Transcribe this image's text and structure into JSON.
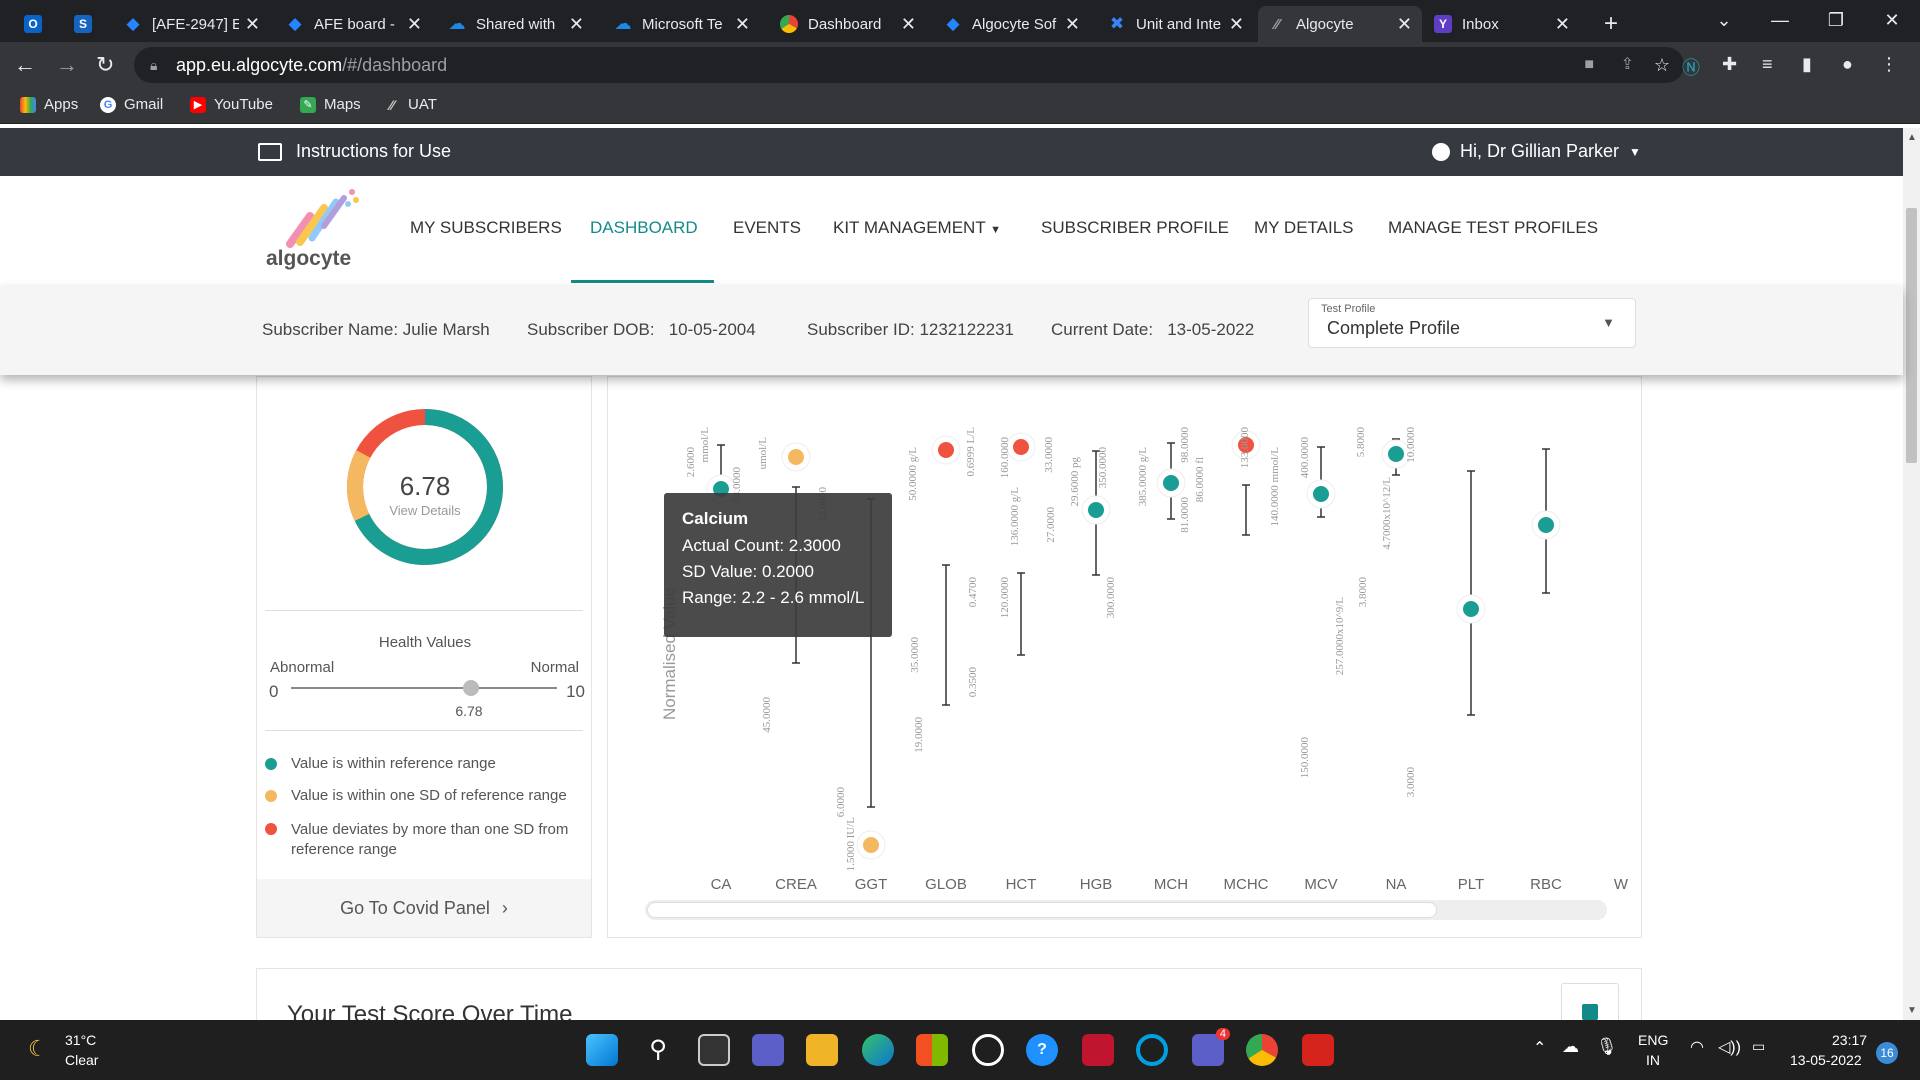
{
  "browser": {
    "tabs": [
      {
        "title": "",
        "icon": "outlook-icon",
        "color": "#0a64c8"
      },
      {
        "title": "",
        "icon": "sharepoint-icon",
        "color": "#1565c0"
      },
      {
        "title": "[AFE-2947] E",
        "icon": "jira-icon",
        "color": "#2684ff"
      },
      {
        "title": "AFE board -",
        "icon": "jira-icon",
        "color": "#2684ff"
      },
      {
        "title": "Shared with",
        "icon": "onedrive-icon",
        "color": "#1e88e5"
      },
      {
        "title": "Microsoft Te",
        "icon": "onedrive-icon",
        "color": "#1e88e5"
      },
      {
        "title": "Dashboard",
        "icon": "chrome-icon",
        "color": "#e8eaed"
      },
      {
        "title": "Algocyte Sof",
        "icon": "jira-icon",
        "color": "#2684ff"
      },
      {
        "title": "Unit and Inte",
        "icon": "tool-icon",
        "color": "#3b82f6"
      },
      {
        "title": "Algocyte",
        "icon": "algocyte-icon",
        "color": "#9aa0a6"
      },
      {
        "title": "Inbox",
        "icon": "yahoo-mail-icon",
        "color": "#5f3dc4"
      }
    ],
    "url_host": "app.eu.algocyte.com",
    "url_path": "/#/dashboard",
    "bookmarks": [
      "Apps",
      "Gmail",
      "YouTube",
      "Maps",
      "UAT"
    ]
  },
  "topbar": {
    "instructions": "Instructions for Use",
    "greeting": "Hi, Dr Gillian Parker"
  },
  "nav": {
    "logo_text": "algocyte",
    "items": [
      "MY SUBSCRIBERS",
      "DASHBOARD",
      "EVENTS",
      "KIT MANAGEMENT",
      "SUBSCRIBER PROFILE",
      "MY DETAILS",
      "MANAGE TEST PROFILES"
    ],
    "active": "DASHBOARD",
    "accent": "#138a8a"
  },
  "subscriber": {
    "name_label": "Subscriber Name:",
    "name": "Julie Marsh",
    "dob_label": "Subscriber DOB:",
    "dob": "10-05-2004",
    "id_label": "Subscriber ID:",
    "id": "1232122231",
    "date_label": "Current Date:",
    "date": "13-05-2022",
    "profile_label": "Test Profile",
    "profile_value": "Complete Profile"
  },
  "score": {
    "value": "6.78",
    "link": "View Details",
    "health_title": "Health Values",
    "abnormal": "Abnormal",
    "normal": "Normal",
    "min": "0",
    "max": "10",
    "slider_value": 6.78,
    "slider_label": "6.78",
    "donut_fraction": 0.678
  },
  "legend": [
    {
      "text": "Value is within reference range",
      "color": "#1a9e93"
    },
    {
      "text": "Value is within one SD of reference range",
      "color": "#f4b860"
    },
    {
      "text": "Value deviates by more than one SD from reference range",
      "color": "#ef5340"
    }
  ],
  "covid_link": "Go To Covid Panel",
  "tooltip": {
    "title": "Calcium",
    "line1": "Actual Count: 2.3000",
    "line2": "SD Value: 0.2000",
    "line3": "Range: 2.2 - 2.6 mmol/L"
  },
  "chart_data": {
    "type": "scatter",
    "ylabel": "Normalised Value",
    "categories": [
      "CA",
      "CREA",
      "GGT",
      "GLOB",
      "HCT",
      "HGB",
      "MCH",
      "MCHC",
      "MCV",
      "NA",
      "PLT",
      "RBC",
      "W"
    ],
    "points": [
      {
        "cat": "CA",
        "status": "normal"
      },
      {
        "cat": "CREA",
        "status": "sd"
      },
      {
        "cat": "GGT",
        "status": "sd"
      },
      {
        "cat": "GLOB",
        "status": "abnormal"
      },
      {
        "cat": "HCT",
        "status": "abnormal"
      },
      {
        "cat": "HGB",
        "status": "normal"
      },
      {
        "cat": "MCH",
        "status": "normal"
      },
      {
        "cat": "MCHC",
        "status": "abnormal"
      },
      {
        "cat": "MCV",
        "status": "normal"
      },
      {
        "cat": "NA",
        "status": "normal"
      },
      {
        "cat": "PLT",
        "status": "normal"
      },
      {
        "cat": "RBC",
        "status": "normal"
      }
    ],
    "tick_labels": [
      {
        "text": "2.6000"
      },
      {
        "text": "mmol/L"
      },
      {
        "text": "84.0000"
      },
      {
        "text": "umol/L"
      },
      {
        "text": "45.0000"
      },
      {
        "text": "42.0000"
      },
      {
        "text": "6.0000"
      },
      {
        "text": "1.5000 IU/L"
      },
      {
        "text": "50.0000 g/L"
      },
      {
        "text": "35.0000"
      },
      {
        "text": "19.0000"
      },
      {
        "text": "0.6999 L/L"
      },
      {
        "text": "0.4700"
      },
      {
        "text": "0.3500"
      },
      {
        "text": "160.0000"
      },
      {
        "text": "136.0000 g/L"
      },
      {
        "text": "120.0000"
      },
      {
        "text": "33.0000"
      },
      {
        "text": "27.0000"
      },
      {
        "text": "29.6000 pg"
      },
      {
        "text": "350.0000"
      },
      {
        "text": "300.0000"
      },
      {
        "text": "385.0000 g/L"
      },
      {
        "text": "98.0000"
      },
      {
        "text": "81.0000"
      },
      {
        "text": "86.0000 fl"
      },
      {
        "text": "133.0000"
      },
      {
        "text": "140.0000 mmol/L"
      },
      {
        "text": "400.0000"
      },
      {
        "text": "150.0000"
      },
      {
        "text": "257.0000x10^9/L"
      },
      {
        "text": "5.8000"
      },
      {
        "text": "3.8000"
      },
      {
        "text": "4.7000x10^12/L"
      },
      {
        "text": "10.0000"
      },
      {
        "text": "3.0000"
      }
    ]
  },
  "bottom_title": "Your Test Score Over Time",
  "taskbar": {
    "temp": "31°C",
    "weather": "Clear",
    "lang1": "ENG",
    "lang2": "IN",
    "time": "23:17",
    "date": "13-05-2022",
    "badge": "16",
    "teams_badge": "4"
  }
}
